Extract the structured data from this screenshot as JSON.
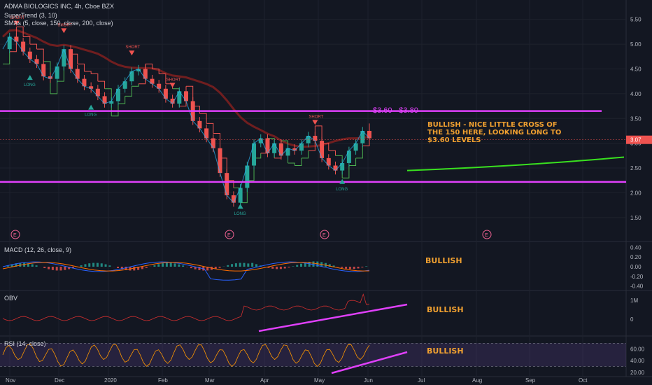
{
  "header": {
    "title": "ADMA BIOLOGICS INC, 4h, Cboe BZX",
    "supertrend": "SuperTrend (3, 10)",
    "smas": "SMAs (5, close, 150, close, 200, close)"
  },
  "panes": {
    "macd_label": "MACD (12, 26, close, 9)",
    "obv_label": "OBV",
    "rsi_label": "RSI (14, close)"
  },
  "annotations": {
    "range": "$3.60 - $3.80",
    "main_lines": [
      "BULLISH - NICE LITTLE CROSS OF",
      "THE 150 HERE, LOOKING LONG TO",
      "$3.60 LEVELS"
    ],
    "macd": "BULLISH",
    "obv": "BULLISH",
    "rsi": "BULLISH"
  },
  "signals": {
    "short": "SHORT",
    "long": "LONG",
    "earnings": "E"
  },
  "chart_data": [
    {
      "type": "line",
      "title": "ADMA BIOLOGICS INC, 4h, Cboe BZX",
      "x_ticks": [
        "Nov",
        "Dec",
        "2020",
        "Feb",
        "Mar",
        "Apr",
        "May",
        "Jun",
        "Jul",
        "Aug",
        "Sep",
        "Oct"
      ],
      "y_ticks": [
        1.5,
        2.0,
        2.5,
        3.0,
        3.5,
        4.0,
        4.5,
        5.0,
        5.5
      ],
      "ylim": [
        1.3,
        5.75
      ],
      "last_price": 3.07,
      "series": [
        {
          "name": "",
          "values": [
            4.9,
            5.15,
            5.05,
            4.85,
            4.7,
            4.6,
            4.35,
            4.3,
            4.55,
            4.9,
            4.5,
            4.3,
            4.15,
            4.1,
            3.95,
            3.8,
            3.85,
            4.1,
            4.25,
            4.45,
            4.5,
            4.3,
            4.2,
            4.1,
            3.9,
            3.8,
            4.05,
            3.85,
            3.45,
            3.3,
            3.1,
            2.9,
            2.4,
            1.95,
            1.8,
            2.1,
            2.55,
            3.0,
            3.1,
            2.8,
            3.0,
            2.75,
            2.9,
            2.85,
            3.0,
            3.15,
            3.05,
            2.7,
            2.55,
            2.45,
            2.6,
            2.85,
            3.0,
            3.25,
            3.1
          ]
        }
      ],
      "horizontal_levels": [
        3.65,
        2.22
      ],
      "projection": {
        "from": 2.45,
        "to": 2.72
      }
    },
    {
      "type": "bar",
      "title": "MACD (12, 26, close, 9)",
      "y_ticks": [
        0.4,
        0.2,
        0.0,
        -0.2,
        -0.4
      ],
      "ylim": [
        -0.45,
        0.45
      ]
    },
    {
      "type": "line",
      "title": "OBV",
      "y_ticks": [
        "1M",
        "0"
      ]
    },
    {
      "type": "line",
      "title": "RSI (14, close)",
      "y_ticks": [
        60.0,
        40.0,
        20.0
      ],
      "ylim": [
        15,
        80
      ]
    }
  ],
  "colors": {
    "background": "#131722",
    "grid": "#1e222d",
    "up": "#26a69a",
    "down": "#ef5350",
    "level": "#e040fb",
    "projection": "#39e01f",
    "annotation": "#f0a030",
    "sma150": "#7b1f1f",
    "supertrend_up": "#4caf50",
    "supertrend_down": "#ef5350"
  }
}
